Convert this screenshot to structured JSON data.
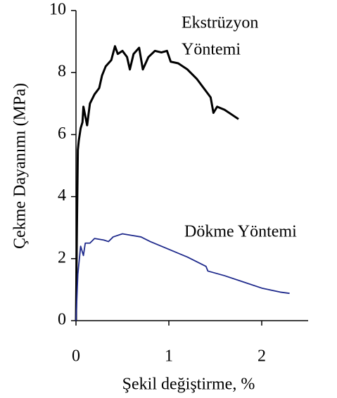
{
  "chart_data": {
    "type": "line",
    "x_label": "Şekil değiştirme, %",
    "y_label": "Çekme Dayanımı (MPa)",
    "annotations": [
      "Ekstrüzyon",
      "Yöntemi",
      "Dökme Yöntemi"
    ],
    "xlim": [
      0,
      2.5
    ],
    "xticks": [
      0,
      1,
      2
    ],
    "ylim": [
      0,
      10
    ],
    "yticks": [
      0,
      2,
      4,
      6,
      8,
      10
    ],
    "grid": false,
    "series": [
      {
        "color": "#000000",
        "x": [
          0,
          0.01,
          0.02,
          0.03,
          0.05,
          0.07,
          0.08,
          0.1,
          0.12,
          0.15,
          0.2,
          0.25,
          0.28,
          0.32,
          0.38,
          0.42,
          0.45,
          0.5,
          0.55,
          0.58,
          0.62,
          0.68,
          0.72,
          0.78,
          0.85,
          0.92,
          0.98,
          1.02,
          1.1,
          1.2,
          1.3,
          1.4,
          1.45,
          1.48,
          1.52,
          1.6,
          1.7,
          1.75
        ],
        "values": [
          0,
          3,
          5.5,
          5.8,
          6.2,
          6.4,
          6.9,
          6.6,
          6.3,
          7.0,
          7.3,
          7.5,
          7.9,
          8.2,
          8.4,
          8.85,
          8.6,
          8.7,
          8.5,
          8.1,
          8.6,
          8.8,
          8.1,
          8.5,
          8.7,
          8.65,
          8.7,
          8.35,
          8.3,
          8.1,
          7.8,
          7.4,
          7.2,
          6.7,
          6.9,
          6.8,
          6.6,
          6.5
        ]
      },
      {
        "color": "#1f2a8c",
        "x": [
          0,
          0.02,
          0.05,
          0.08,
          0.1,
          0.15,
          0.2,
          0.3,
          0.35,
          0.4,
          0.5,
          0.6,
          0.7,
          0.8,
          1.0,
          1.2,
          1.4,
          1.42,
          1.6,
          1.8,
          2.0,
          2.2,
          2.3
        ],
        "values": [
          0,
          1.5,
          2.4,
          2.1,
          2.5,
          2.5,
          2.65,
          2.6,
          2.55,
          2.7,
          2.8,
          2.75,
          2.7,
          2.55,
          2.3,
          2.05,
          1.75,
          1.6,
          1.45,
          1.25,
          1.05,
          0.92,
          0.88
        ]
      }
    ]
  }
}
